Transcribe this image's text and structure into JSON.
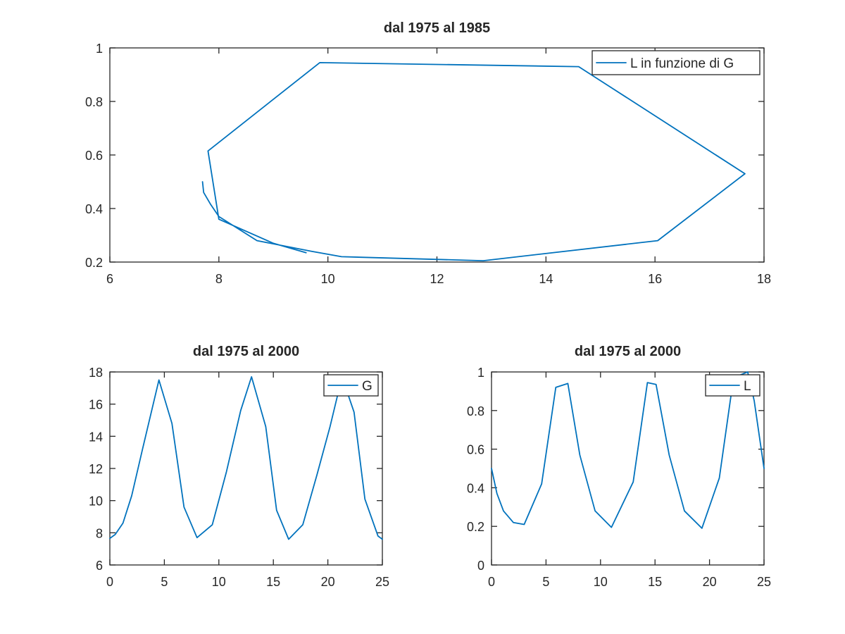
{
  "figure": {
    "background": "#ffffff",
    "line_color": "#0072bd"
  },
  "chart_data": [
    {
      "type": "line",
      "title": "dal 1975 al 1985",
      "xlabel": "",
      "ylabel": "",
      "xlim": [
        6,
        18
      ],
      "ylim": [
        0.2,
        1
      ],
      "xticks": [
        6,
        8,
        10,
        12,
        14,
        16,
        18
      ],
      "yticks": [
        0.2,
        0.4,
        0.6,
        0.8,
        1
      ],
      "xtick_labels": [
        "6",
        "8",
        "10",
        "12",
        "14",
        "16",
        "18"
      ],
      "ytick_labels": [
        "0.2",
        "0.4",
        "0.6",
        "0.8",
        "1"
      ],
      "grid": false,
      "legend": {
        "position": "top-right",
        "entries": [
          "L in funzione di G"
        ]
      },
      "series": [
        {
          "name": "L in funzione di G",
          "color": "#0072bd",
          "x": [
            7.7,
            7.72,
            7.85,
            8.0,
            8.7,
            9.7,
            10.25,
            12.85,
            16.05,
            17.65,
            14.6,
            9.85,
            7.8,
            8.0,
            9.0,
            9.6
          ],
          "y": [
            0.5,
            0.46,
            0.415,
            0.37,
            0.28,
            0.24,
            0.22,
            0.205,
            0.28,
            0.53,
            0.93,
            0.945,
            0.615,
            0.36,
            0.27,
            0.235
          ]
        }
      ]
    },
    {
      "type": "line",
      "title": "dal 1975 al 2000",
      "xlabel": "",
      "ylabel": "",
      "xlim": [
        0,
        25
      ],
      "ylim": [
        6,
        18
      ],
      "xticks": [
        0,
        5,
        10,
        15,
        20,
        25
      ],
      "yticks": [
        6,
        8,
        10,
        12,
        14,
        16,
        18
      ],
      "xtick_labels": [
        "0",
        "5",
        "10",
        "15",
        "20",
        "25"
      ],
      "ytick_labels": [
        "6",
        "8",
        "10",
        "12",
        "14",
        "16",
        "18"
      ],
      "grid": false,
      "legend": {
        "position": "top-right",
        "entries": [
          "G"
        ]
      },
      "series": [
        {
          "name": "G",
          "color": "#0072bd",
          "x": [
            0,
            0.5,
            1.2,
            2.0,
            3.0,
            4.5,
            5.7,
            6.8,
            8.0,
            9.4,
            10.7,
            12.0,
            13.0,
            14.3,
            15.3,
            16.4,
            17.7,
            19.0,
            20.2,
            21.3,
            22.4,
            23.4,
            24.6,
            25
          ],
          "y": [
            7.65,
            7.9,
            8.6,
            10.3,
            13.2,
            17.5,
            14.8,
            9.6,
            7.7,
            8.5,
            11.8,
            15.6,
            17.7,
            14.6,
            9.4,
            7.6,
            8.5,
            11.6,
            14.6,
            17.7,
            15.5,
            10.1,
            7.8,
            7.6
          ]
        }
      ]
    },
    {
      "type": "line",
      "title": "dal 1975 al 2000",
      "xlabel": "",
      "ylabel": "",
      "xlim": [
        0,
        25
      ],
      "ylim": [
        0,
        1
      ],
      "xticks": [
        0,
        5,
        10,
        15,
        20,
        25
      ],
      "yticks": [
        0,
        0.2,
        0.4,
        0.6,
        0.8,
        1
      ],
      "xtick_labels": [
        "0",
        "5",
        "10",
        "15",
        "20",
        "25"
      ],
      "ytick_labels": [
        "0",
        "0.2",
        "0.4",
        "0.6",
        "0.8",
        "1"
      ],
      "grid": false,
      "legend": {
        "position": "top-right",
        "entries": [
          "L"
        ]
      },
      "series": [
        {
          "name": "L",
          "color": "#0072bd",
          "x": [
            0,
            0.5,
            1.1,
            2.0,
            3.0,
            4.6,
            5.9,
            7.0,
            8.1,
            9.5,
            11.0,
            13.0,
            14.3,
            15.1,
            16.3,
            17.7,
            19.3,
            20.9,
            22.2,
            23.5,
            24.1,
            25
          ],
          "y": [
            0.5,
            0.37,
            0.28,
            0.22,
            0.21,
            0.42,
            0.92,
            0.94,
            0.57,
            0.28,
            0.195,
            0.43,
            0.945,
            0.935,
            0.57,
            0.28,
            0.19,
            0.45,
            0.97,
            1.0,
            0.85,
            0.5
          ]
        }
      ]
    }
  ]
}
